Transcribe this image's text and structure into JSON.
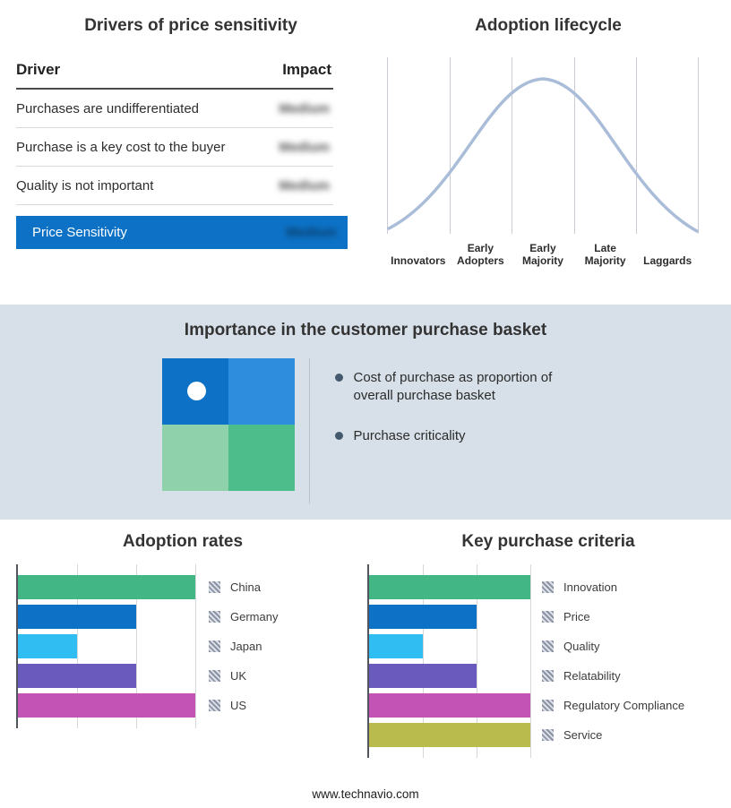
{
  "colors": {
    "accent_blue": "#0d72c6",
    "section_bg": "#d7e0e9",
    "curve": "#aabdd8"
  },
  "chart_data": [
    {
      "type": "table",
      "title": "Drivers of price sensitivity",
      "columns": [
        "Driver",
        "Impact"
      ],
      "rows": [
        [
          "Purchases are undifferentiated",
          "Medium"
        ],
        [
          "Purchase is a key cost to the buyer",
          "Medium"
        ],
        [
          "Quality is not important",
          "Medium"
        ]
      ],
      "highlight_row": [
        "Price Sensitivity",
        "Medium"
      ],
      "impact_values_obscured": true
    },
    {
      "type": "line",
      "title": "Adoption lifecycle",
      "shape": "bell-curve",
      "categories": [
        "Innovators",
        "Early Adopters",
        "Early Majority",
        "Late Majority",
        "Laggards"
      ],
      "grid": "vertical-only"
    },
    {
      "type": "bar",
      "orientation": "horizontal",
      "title": "Adoption rates",
      "categories": [
        "China",
        "Germany",
        "Japan",
        "UK",
        "US"
      ],
      "values": [
        3,
        2,
        1,
        2,
        3
      ],
      "xlim": [
        0,
        3
      ],
      "colors": [
        "#42b685",
        "#0d72c6",
        "#30bdf2",
        "#6a5abe",
        "#c353b4"
      ],
      "legend_position": "right"
    },
    {
      "type": "bar",
      "orientation": "horizontal",
      "title": "Key purchase criteria",
      "categories": [
        "Innovation",
        "Price",
        "Quality",
        "Relatability",
        "Regulatory Compliance",
        "Service"
      ],
      "values": [
        3,
        2,
        1,
        2,
        3,
        3
      ],
      "xlim": [
        0,
        3
      ],
      "colors": [
        "#42b685",
        "#0d72c6",
        "#30bdf2",
        "#6a5abe",
        "#c353b4",
        "#b9bc4d"
      ],
      "legend_position": "right"
    }
  ],
  "basket": {
    "title": "Importance in the customer purchase basket",
    "bullets": [
      "Cost of purchase as proportion of overall purchase basket",
      "Purchase criticality"
    ],
    "quadrant_colors": {
      "top_left": "#0d72c6",
      "top_right": "#2e8ddd",
      "bottom_left": "#8ed1ab",
      "bottom_right": "#4cbd8b"
    },
    "dot_color": "#ffffff"
  },
  "footer": {
    "text": "www.technavio.com"
  }
}
